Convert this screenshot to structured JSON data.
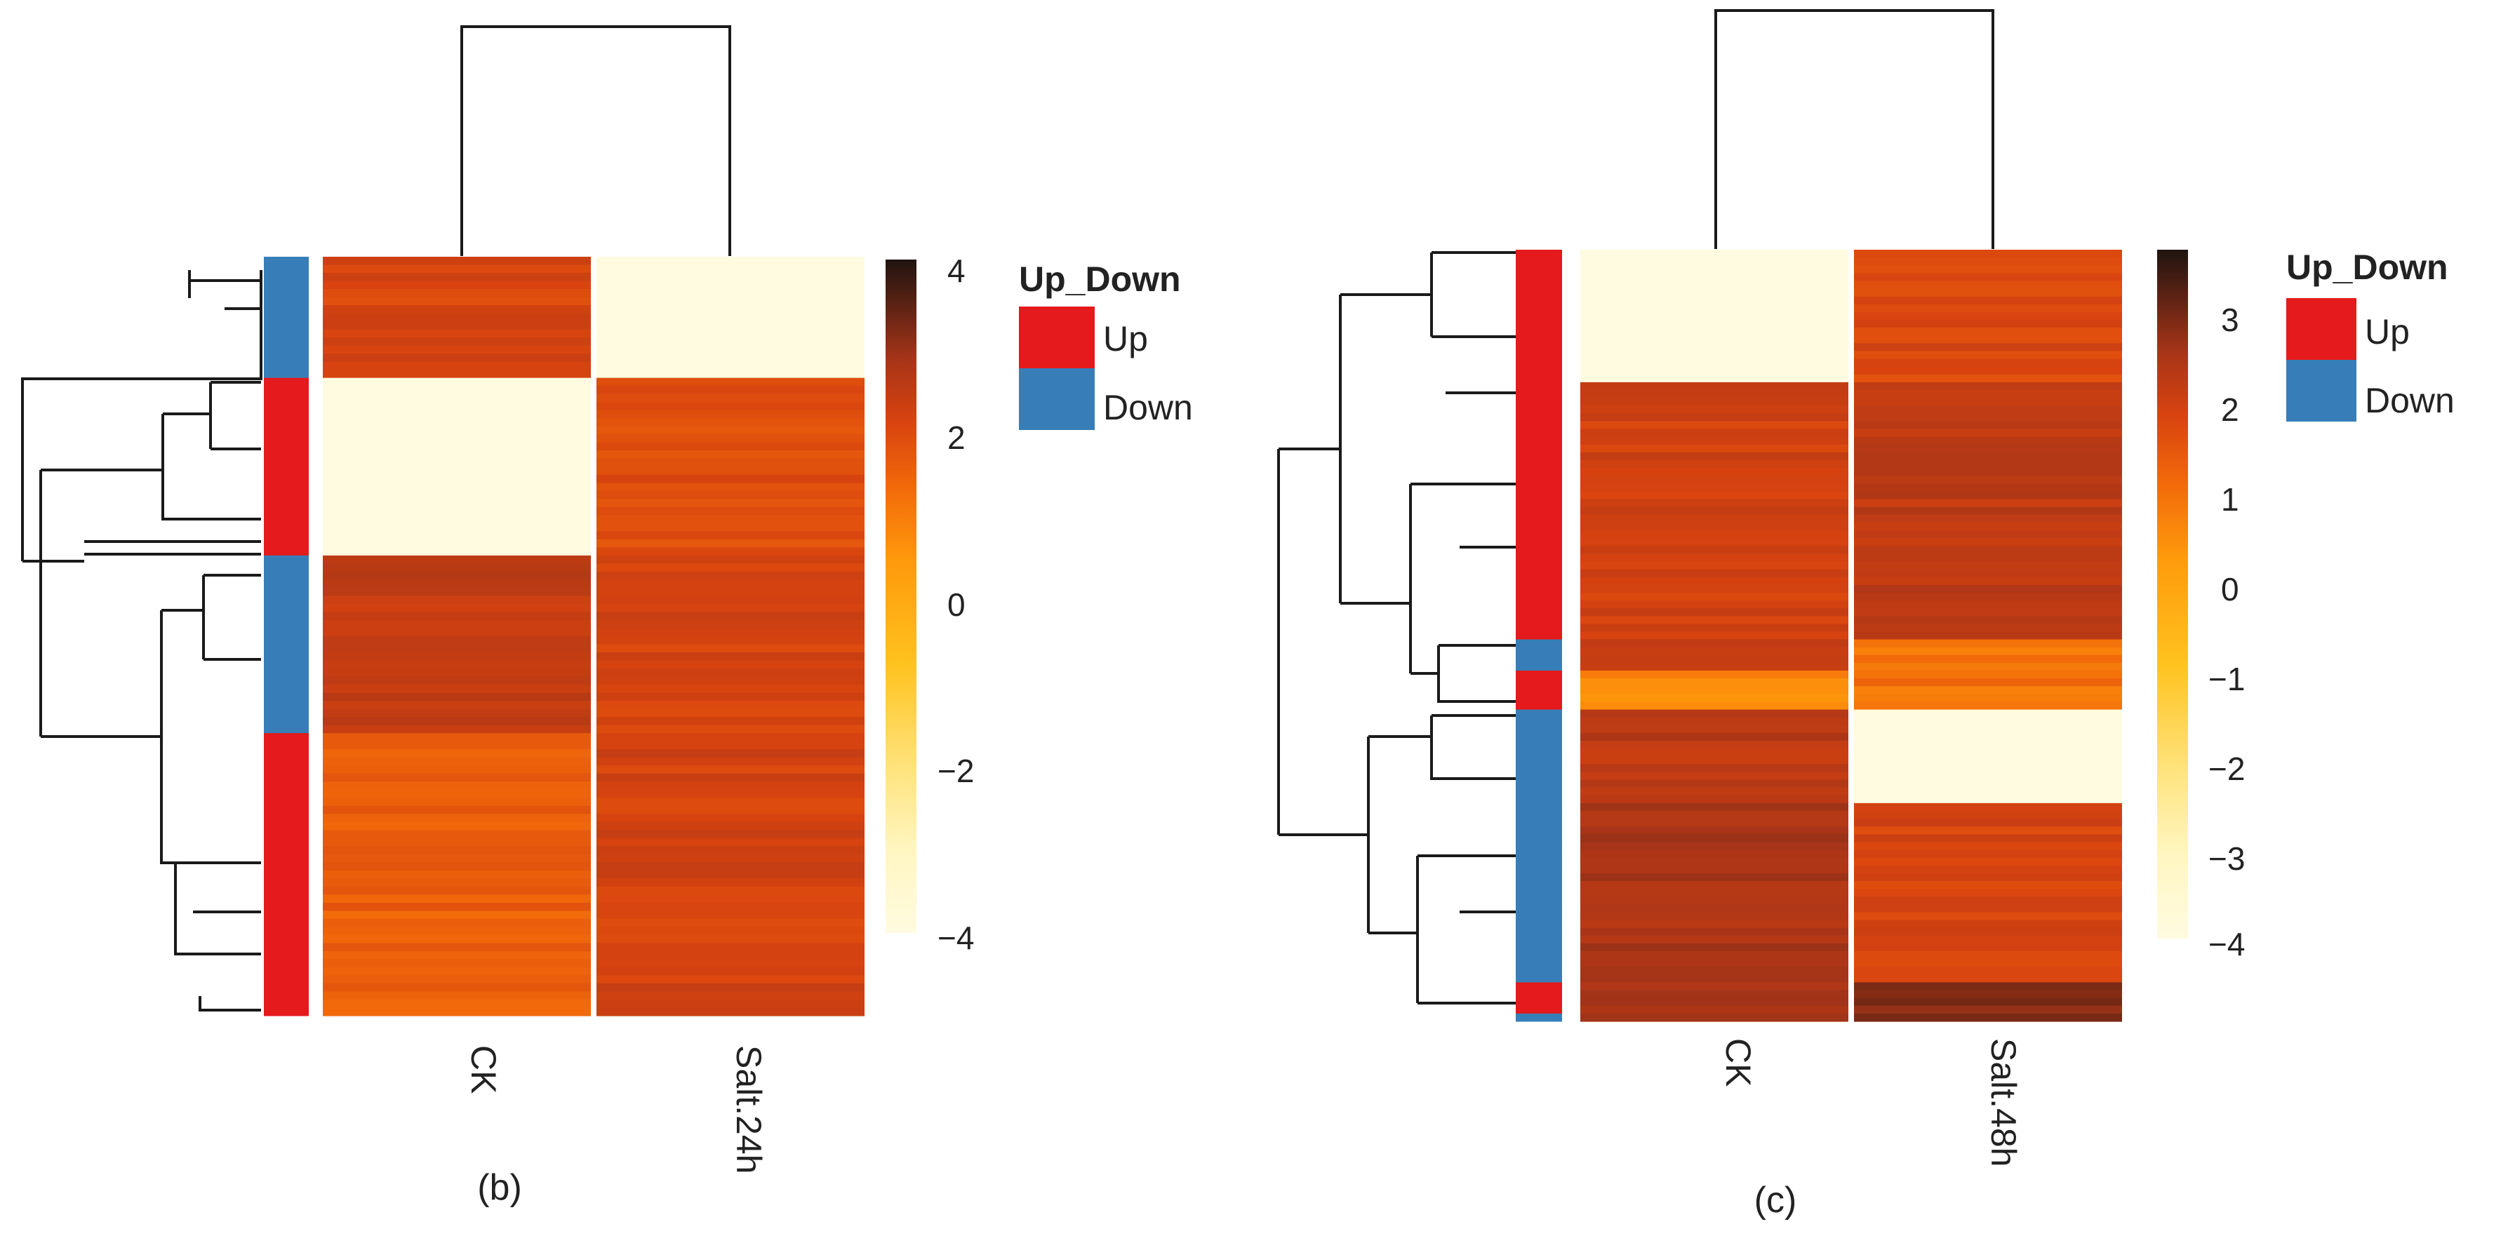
{
  "colors": {
    "up": "#e41a1c",
    "down": "#377eb8",
    "scale": [
      "#fffbe0",
      "#fff6c2",
      "#ffe27a",
      "#ffc21e",
      "#ff9b0c",
      "#f26a0a",
      "#d84310",
      "#a83518",
      "#5e2314",
      "#1f1410"
    ]
  },
  "panels": [
    {
      "label": "(b)",
      "legend_title": "Up_Down",
      "legend_items": [
        "Up",
        "Down"
      ],
      "colorbar_ticks": [
        "4",
        "2",
        "0",
        "−2",
        "−4"
      ],
      "chart_data": {
        "type": "heatmap",
        "title": "",
        "columns": [
          "CK",
          "Salt.24h"
        ],
        "value_range": [
          -4,
          4
        ],
        "row_annotation_name": "Up_Down",
        "row_groups": [
          {
            "category": "Down",
            "rows": 15,
            "values": [
              1.3,
              -4.0
            ]
          },
          {
            "category": "Up",
            "rows": 22,
            "values": [
              -4.0,
              1.1
            ]
          },
          {
            "category": "Down",
            "rows": 22,
            "values": [
              1.7,
              1.4
            ]
          },
          {
            "category": "Up",
            "rows": 35,
            "values": [
              0.7,
              1.4
            ]
          }
        ]
      }
    },
    {
      "label": "(c)",
      "legend_title": "Up_Down",
      "legend_items": [
        "Up",
        "Down"
      ],
      "colorbar_ticks": [
        "3",
        "2",
        "1",
        "0",
        "−1",
        "−2",
        "−3",
        "−4"
      ],
      "chart_data": {
        "type": "heatmap",
        "title": "",
        "columns": [
          "CK",
          "Salt.48h"
        ],
        "value_range": [
          -4,
          3.6
        ],
        "row_annotation_name": "Up_Down",
        "row_groups": [
          {
            "category": "Up",
            "rows": 17,
            "values": [
              -4.0,
              1.0
            ]
          },
          {
            "category": "Up",
            "rows": 33,
            "values": [
              1.2,
              1.5
            ]
          },
          {
            "category": "Down",
            "rows": 4,
            "values": [
              1.5,
              0.0
            ]
          },
          {
            "category": "Up",
            "rows": 5,
            "values": [
              -0.3,
              0.1
            ]
          },
          {
            "category": "Down",
            "rows": 12,
            "values": [
              1.6,
              -4.0
            ]
          },
          {
            "category": "Down",
            "rows": 23,
            "values": [
              1.8,
              1.1
            ]
          },
          {
            "category": "Up",
            "rows": 4,
            "values": [
              1.8,
              2.3
            ]
          },
          {
            "category": "Down",
            "rows": 1,
            "values": [
              1.8,
              2.3
            ]
          }
        ]
      }
    }
  ]
}
